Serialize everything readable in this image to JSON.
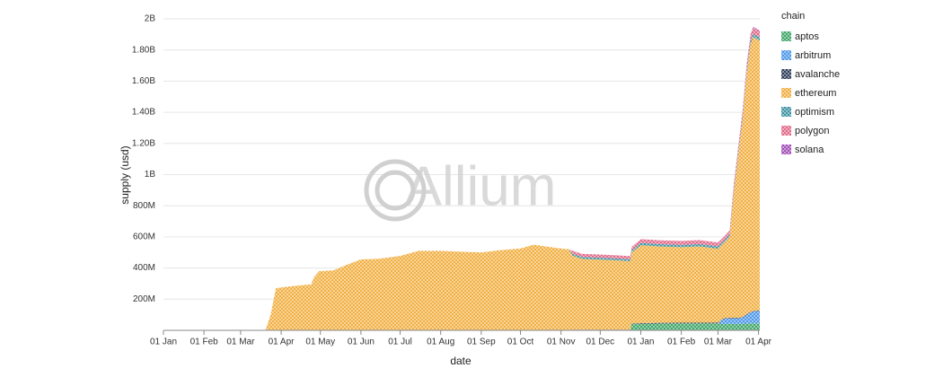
{
  "chart_data": {
    "type": "stacked_area",
    "x_label": "date",
    "y_label": "supply (usd)",
    "watermark": "Allium",
    "legend_title": "chain",
    "legend_position": "right",
    "grid": true,
    "x": [
      0,
      78,
      80,
      82,
      86,
      90,
      100,
      113,
      115,
      119,
      130,
      140,
      151,
      165,
      181,
      195,
      212,
      228,
      243,
      258,
      273,
      283,
      295,
      304,
      310,
      313,
      320,
      334,
      348,
      357,
      358,
      365,
      380,
      396,
      410,
      424,
      428,
      433,
      436,
      440,
      443,
      446,
      449,
      451,
      456
    ],
    "xlim": [
      0,
      456
    ],
    "xticks": [
      {
        "value": 0,
        "label": "01 Jan"
      },
      {
        "value": 31,
        "label": "01 Feb"
      },
      {
        "value": 59,
        "label": "01 Mar"
      },
      {
        "value": 90,
        "label": "01 Apr"
      },
      {
        "value": 120,
        "label": "01 May"
      },
      {
        "value": 151,
        "label": "01 Jun"
      },
      {
        "value": 181,
        "label": "01 Jul"
      },
      {
        "value": 212,
        "label": "01 Aug"
      },
      {
        "value": 243,
        "label": "01 Sep"
      },
      {
        "value": 273,
        "label": "01 Oct"
      },
      {
        "value": 304,
        "label": "01 Nov"
      },
      {
        "value": 334,
        "label": "01 Dec"
      },
      {
        "value": 365,
        "label": "01 Jan"
      },
      {
        "value": 396,
        "label": "01 Feb"
      },
      {
        "value": 424,
        "label": "01 Mar"
      },
      {
        "value": 455,
        "label": "01 Apr"
      }
    ],
    "ylim": [
      0,
      2000000000
    ],
    "yticks": [
      {
        "value": 200000000,
        "label": "200M"
      },
      {
        "value": 400000000,
        "label": "400M"
      },
      {
        "value": 600000000,
        "label": "600M"
      },
      {
        "value": 800000000,
        "label": "800M"
      },
      {
        "value": 1000000000,
        "label": "1B"
      },
      {
        "value": 1200000000,
        "label": "1.20B"
      },
      {
        "value": 1400000000,
        "label": "1.40B"
      },
      {
        "value": 1600000000,
        "label": "1.60B"
      },
      {
        "value": 1800000000,
        "label": "1.80B"
      },
      {
        "value": 2000000000,
        "label": "2B"
      }
    ],
    "series": [
      {
        "name": "aptos",
        "color": "#2e9e5b",
        "values": [
          0,
          0,
          0,
          0,
          0,
          0,
          0,
          0,
          0,
          0,
          0,
          0,
          0,
          0,
          0,
          0,
          0,
          0,
          0,
          0,
          0,
          0,
          0,
          0,
          0,
          0,
          0,
          0,
          0,
          0,
          40000000,
          42000000,
          44000000,
          45000000,
          45000000,
          45000000,
          42000000,
          42000000,
          42000000,
          42000000,
          42000000,
          45000000,
          45000000,
          45000000,
          45000000
        ]
      },
      {
        "name": "arbitrum",
        "color": "#3b8ee8",
        "values": [
          0,
          0,
          0,
          0,
          0,
          0,
          0,
          0,
          0,
          0,
          0,
          0,
          0,
          0,
          0,
          0,
          0,
          0,
          0,
          0,
          0,
          0,
          0,
          0,
          0,
          0,
          0,
          0,
          0,
          0,
          0,
          0,
          0,
          0,
          0,
          0,
          30000000,
          35000000,
          35000000,
          35000000,
          40000000,
          55000000,
          70000000,
          75000000,
          80000000
        ]
      },
      {
        "name": "avalanche",
        "color": "#1a2a4a",
        "values": [
          0,
          0,
          0,
          0,
          0,
          0,
          0,
          0,
          0,
          0,
          0,
          0,
          0,
          0,
          0,
          0,
          0,
          0,
          0,
          0,
          0,
          0,
          0,
          0,
          0,
          4000000,
          4000000,
          4000000,
          4000000,
          4000000,
          4000000,
          4000000,
          4000000,
          4000000,
          4000000,
          4000000,
          4000000,
          4000000,
          4000000,
          4000000,
          4000000,
          4000000,
          4000000,
          4000000,
          4000000
        ]
      },
      {
        "name": "ethereum",
        "color": "#f0a830",
        "values": [
          0,
          0,
          50000000,
          100000000,
          270000000,
          275000000,
          285000000,
          295000000,
          340000000,
          380000000,
          385000000,
          420000000,
          455000000,
          460000000,
          478000000,
          510000000,
          510000000,
          505000000,
          500000000,
          515000000,
          525000000,
          550000000,
          535000000,
          525000000,
          520000000,
          475000000,
          455000000,
          450000000,
          445000000,
          440000000,
          455000000,
          500000000,
          490000000,
          485000000,
          490000000,
          475000000,
          480000000,
          520000000,
          800000000,
          1080000000,
          1280000000,
          1550000000,
          1720000000,
          1760000000,
          1730000000
        ]
      },
      {
        "name": "optimism",
        "color": "#2a8a9a",
        "values": [
          0,
          0,
          0,
          0,
          0,
          0,
          0,
          0,
          0,
          0,
          0,
          0,
          0,
          0,
          0,
          0,
          0,
          0,
          0,
          0,
          0,
          0,
          0,
          0,
          0,
          12000000,
          12000000,
          12000000,
          12000000,
          12000000,
          14000000,
          15000000,
          15000000,
          15000000,
          15000000,
          15000000,
          15000000,
          15000000,
          15000000,
          18000000,
          18000000,
          20000000,
          20000000,
          20000000,
          20000000
        ]
      },
      {
        "name": "polygon",
        "color": "#e05c80",
        "values": [
          0,
          0,
          0,
          0,
          0,
          0,
          0,
          0,
          0,
          0,
          0,
          0,
          0,
          0,
          0,
          0,
          0,
          0,
          0,
          0,
          0,
          0,
          0,
          0,
          0,
          20000000,
          20000000,
          20000000,
          20000000,
          20000000,
          22000000,
          25000000,
          25000000,
          25000000,
          25000000,
          25000000,
          25000000,
          25000000,
          30000000,
          30000000,
          35000000,
          35000000,
          40000000,
          40000000,
          40000000
        ]
      },
      {
        "name": "solana",
        "color": "#9b3fb0",
        "values": [
          0,
          0,
          0,
          0,
          0,
          0,
          0,
          0,
          0,
          0,
          0,
          0,
          0,
          0,
          0,
          0,
          0,
          0,
          0,
          0,
          0,
          0,
          0,
          0,
          0,
          0,
          0,
          0,
          0,
          0,
          0,
          0,
          0,
          0,
          0,
          0,
          0,
          0,
          3000000,
          3000000,
          4000000,
          5000000,
          5000000,
          5000000,
          5000000
        ]
      }
    ]
  }
}
